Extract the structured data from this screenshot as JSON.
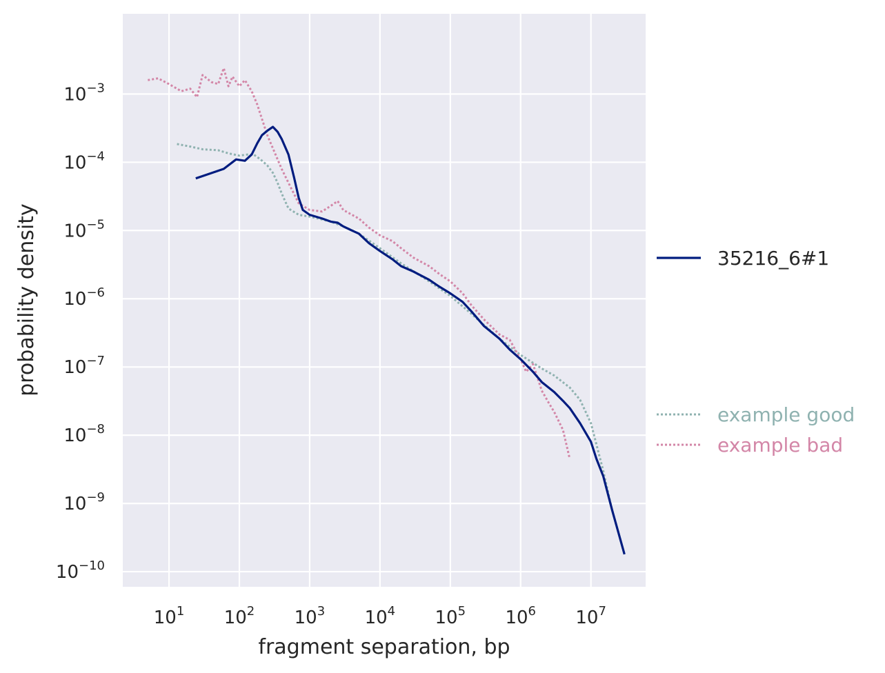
{
  "chart_data": {
    "type": "line",
    "xlabel": "fragment separation, bp",
    "ylabel": "probability density",
    "xscale": "log",
    "yscale": "log",
    "xlim": [
      2.2,
      60000000
    ],
    "ylim": [
      6e-11,
      0.015
    ],
    "grid": true,
    "x_ticks": [
      {
        "exp": 1,
        "label_base": "10",
        "label_exp": "1"
      },
      {
        "exp": 2,
        "label_base": "10",
        "label_exp": "2"
      },
      {
        "exp": 3,
        "label_base": "10",
        "label_exp": "3"
      },
      {
        "exp": 4,
        "label_base": "10",
        "label_exp": "4"
      },
      {
        "exp": 5,
        "label_base": "10",
        "label_exp": "5"
      },
      {
        "exp": 6,
        "label_base": "10",
        "label_exp": "6"
      },
      {
        "exp": 7,
        "label_base": "10",
        "label_exp": "7"
      }
    ],
    "y_ticks": [
      {
        "exp": -3,
        "label_base": "10",
        "label_exp": "−3"
      },
      {
        "exp": -4,
        "label_base": "10",
        "label_exp": "−4"
      },
      {
        "exp": -5,
        "label_base": "10",
        "label_exp": "−5"
      },
      {
        "exp": -6,
        "label_base": "10",
        "label_exp": "−6"
      },
      {
        "exp": -7,
        "label_base": "10",
        "label_exp": "−7"
      },
      {
        "exp": -8,
        "label_base": "10",
        "label_exp": "−8"
      },
      {
        "exp": -9,
        "label_base": "10",
        "label_exp": "−9"
      },
      {
        "exp": -10,
        "label_base": "10",
        "label_exp": "−10"
      }
    ],
    "series": [
      {
        "name": "35216_6#1",
        "color": "#001c7f",
        "style": "solid",
        "legend_group": "main",
        "x": [
          24,
          60,
          90,
          120,
          150,
          180,
          210,
          250,
          300,
          350,
          400,
          500,
          600,
          700,
          800,
          1000,
          1500,
          2000,
          2500,
          3000,
          4000,
          5000,
          7000,
          10000,
          15000,
          20000,
          30000,
          50000,
          70000,
          100000,
          150000,
          200000,
          300000,
          500000,
          700000,
          1000000,
          1500000,
          2000000,
          3000000,
          4000000,
          5000000,
          7000000,
          10000000,
          12000000,
          15000000,
          20000000,
          30000000
        ],
        "y": [
          5.8e-05,
          8e-05,
          0.00011,
          0.000105,
          0.00013,
          0.00019,
          0.00025,
          0.00029,
          0.00033,
          0.00028,
          0.00022,
          0.00013,
          6e-05,
          3e-05,
          2e-05,
          1.7e-05,
          1.5e-05,
          1.35e-05,
          1.3e-05,
          1.15e-05,
          1e-05,
          9e-06,
          6.5e-06,
          5e-06,
          3.8e-06,
          3e-06,
          2.5e-06,
          1.9e-06,
          1.5e-06,
          1.2e-06,
          9e-07,
          6.5e-07,
          4e-07,
          2.6e-07,
          1.8e-07,
          1.3e-07,
          8.5e-08,
          6e-08,
          4.3e-08,
          3.2e-08,
          2.5e-08,
          1.5e-08,
          8e-09,
          4.5e-09,
          2.5e-09,
          8e-10,
          1.8e-10
        ]
      },
      {
        "name": "example good",
        "color": "#8fb2b0",
        "style": "dotted",
        "legend_group": "examples",
        "x": [
          13,
          20,
          30,
          50,
          70,
          100,
          130,
          160,
          200,
          250,
          300,
          350,
          400,
          500,
          700,
          1000,
          1500,
          2000,
          3000,
          5000,
          10000,
          20000,
          50000,
          100000,
          200000,
          500000,
          1000000,
          1500000,
          2000000,
          3000000,
          5000000,
          7000000,
          10000000,
          15000000,
          20000000,
          30000000
        ],
        "y": [
          0.000185,
          0.00017,
          0.000155,
          0.00015,
          0.000135,
          0.000125,
          0.00013,
          0.00013,
          0.00011,
          9e-05,
          7e-05,
          5e-05,
          3.5e-05,
          2.1e-05,
          1.7e-05,
          1.6e-05,
          1.45e-05,
          1.35e-05,
          1.15e-05,
          9e-06,
          5.5e-06,
          3.3e-06,
          1.8e-06,
          1.1e-06,
          6e-07,
          2.6e-07,
          1.5e-07,
          1.15e-07,
          9.5e-08,
          7.5e-08,
          5e-08,
          3.3e-08,
          1.5e-08,
          3e-09,
          8e-10,
          1.8e-10
        ]
      },
      {
        "name": "example bad",
        "color": "#d386a7",
        "style": "dotted",
        "legend_group": "examples",
        "x": [
          5,
          7,
          10,
          15,
          20,
          25,
          30,
          40,
          50,
          60,
          70,
          80,
          100,
          120,
          150,
          180,
          200,
          250,
          300,
          400,
          500,
          700,
          1000,
          1500,
          2000,
          2500,
          3000,
          4000,
          5000,
          7000,
          10000,
          15000,
          20000,
          30000,
          50000,
          70000,
          100000,
          150000,
          200000,
          300000,
          500000,
          700000,
          1000000,
          1200000,
          1500000,
          2000000,
          2500000,
          3000000,
          4000000,
          5000000
        ],
        "y": [
          0.0016,
          0.0017,
          0.0014,
          0.0011,
          0.0012,
          0.0009,
          0.0019,
          0.0015,
          0.0014,
          0.0024,
          0.0013,
          0.0018,
          0.0013,
          0.0016,
          0.0011,
          0.0007,
          0.0005,
          0.00025,
          0.00016,
          8e-05,
          5e-05,
          2.5e-05,
          2e-05,
          1.9e-05,
          2.3e-05,
          2.7e-05,
          2e-05,
          1.7e-05,
          1.5e-05,
          1.1e-05,
          8.5e-06,
          7e-06,
          5.5e-06,
          4e-06,
          3e-06,
          2.3e-06,
          1.8e-06,
          1.2e-06,
          8e-07,
          5e-07,
          3e-07,
          2.5e-07,
          1.3e-07,
          8.5e-08,
          1.1e-07,
          4.5e-08,
          3e-08,
          2.2e-08,
          1.2e-08,
          4.5e-09
        ]
      }
    ]
  }
}
